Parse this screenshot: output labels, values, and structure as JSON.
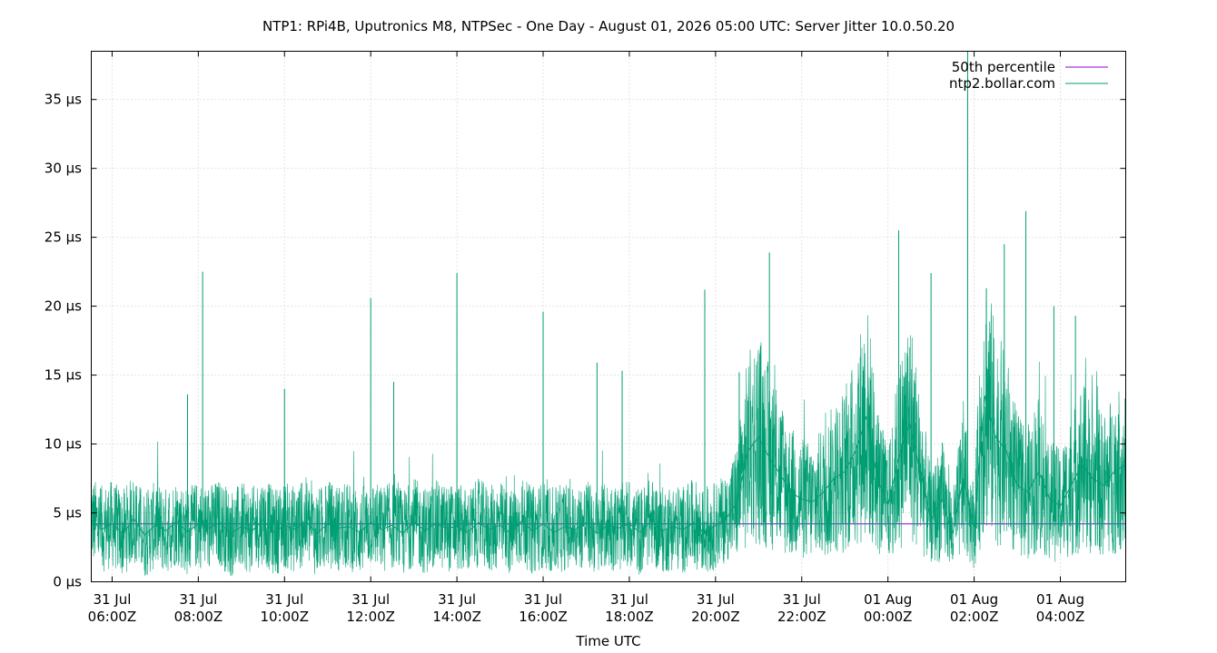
{
  "chart_data": {
    "type": "line",
    "title": "NTP1: RPi4B, Uputronics M8, NTPSec - One Day - August 01, 2026 05:00 UTC: Server Jitter 10.0.50.20",
    "xlabel": "Time UTC",
    "ylabel": "",
    "x_start": "2026-07-31T05:31Z",
    "x_end": "2026-08-01T05:31Z",
    "ylim": [
      0,
      38.5
    ],
    "grid": true,
    "legend_position": "top-right",
    "yticks": [
      {
        "value": 0,
        "label": "0 µs"
      },
      {
        "value": 5,
        "label": "5 µs"
      },
      {
        "value": 10,
        "label": "10 µs"
      },
      {
        "value": 15,
        "label": "15 µs"
      },
      {
        "value": 20,
        "label": "20 µs"
      },
      {
        "value": 25,
        "label": "25 µs"
      },
      {
        "value": 30,
        "label": "30 µs"
      },
      {
        "value": 35,
        "label": "35 µs"
      }
    ],
    "xticks": [
      {
        "time": "2026-07-31T06:00Z",
        "date": "31 Jul",
        "label": "06:00Z"
      },
      {
        "time": "2026-07-31T08:00Z",
        "date": "31 Jul",
        "label": "08:00Z"
      },
      {
        "time": "2026-07-31T10:00Z",
        "date": "31 Jul",
        "label": "10:00Z"
      },
      {
        "time": "2026-07-31T12:00Z",
        "date": "31 Jul",
        "label": "12:00Z"
      },
      {
        "time": "2026-07-31T14:00Z",
        "date": "31 Jul",
        "label": "14:00Z"
      },
      {
        "time": "2026-07-31T16:00Z",
        "date": "31 Jul",
        "label": "16:00Z"
      },
      {
        "time": "2026-07-31T18:00Z",
        "date": "31 Jul",
        "label": "18:00Z"
      },
      {
        "time": "2026-07-31T20:00Z",
        "date": "31 Jul",
        "label": "20:00Z"
      },
      {
        "time": "2026-07-31T22:00Z",
        "date": "31 Jul",
        "label": "22:00Z"
      },
      {
        "time": "2026-08-01T00:00Z",
        "date": "01 Aug",
        "label": "00:00Z"
      },
      {
        "time": "2026-08-01T02:00Z",
        "date": "01 Aug",
        "label": "02:00Z"
      },
      {
        "time": "2026-08-01T04:00Z",
        "date": "01 Aug",
        "label": "04:00Z"
      }
    ],
    "series": [
      {
        "name": "50th percentile",
        "color": "#9400d3",
        "x": [
          "2026-07-31T05:31Z",
          "2026-08-01T05:31Z"
        ],
        "values": [
          4.2,
          4.2
        ]
      },
      {
        "name": "ntp2.bollar.com",
        "color": "#009e73",
        "x": [
          "2026-07-31T05:31Z",
          "2026-07-31T05:45Z",
          "2026-07-31T06:00Z",
          "2026-07-31T06:15Z",
          "2026-07-31T06:30Z",
          "2026-07-31T06:45Z",
          "2026-07-31T07:00Z",
          "2026-07-31T07:15Z",
          "2026-07-31T07:30Z",
          "2026-07-31T07:45Z",
          "2026-07-31T08:00Z",
          "2026-07-31T08:15Z",
          "2026-07-31T08:30Z",
          "2026-07-31T08:45Z",
          "2026-07-31T09:00Z",
          "2026-07-31T09:15Z",
          "2026-07-31T09:30Z",
          "2026-07-31T09:45Z",
          "2026-07-31T10:00Z",
          "2026-07-31T10:15Z",
          "2026-07-31T10:30Z",
          "2026-07-31T10:45Z",
          "2026-07-31T11:00Z",
          "2026-07-31T11:15Z",
          "2026-07-31T11:30Z",
          "2026-07-31T11:45Z",
          "2026-07-31T12:00Z",
          "2026-07-31T12:15Z",
          "2026-07-31T12:30Z",
          "2026-07-31T12:45Z",
          "2026-07-31T13:00Z",
          "2026-07-31T13:15Z",
          "2026-07-31T13:30Z",
          "2026-07-31T13:45Z",
          "2026-07-31T14:00Z",
          "2026-07-31T14:15Z",
          "2026-07-31T14:30Z",
          "2026-07-31T14:45Z",
          "2026-07-31T15:00Z",
          "2026-07-31T15:15Z",
          "2026-07-31T15:30Z",
          "2026-07-31T15:45Z",
          "2026-07-31T16:00Z",
          "2026-07-31T16:15Z",
          "2026-07-31T16:30Z",
          "2026-07-31T16:45Z",
          "2026-07-31T17:00Z",
          "2026-07-31T17:15Z",
          "2026-07-31T17:30Z",
          "2026-07-31T17:45Z",
          "2026-07-31T18:00Z",
          "2026-07-31T18:15Z",
          "2026-07-31T18:30Z",
          "2026-07-31T18:45Z",
          "2026-07-31T19:00Z",
          "2026-07-31T19:15Z",
          "2026-07-31T19:30Z",
          "2026-07-31T19:45Z",
          "2026-07-31T20:00Z",
          "2026-07-31T20:15Z",
          "2026-07-31T20:30Z",
          "2026-07-31T20:45Z",
          "2026-07-31T21:00Z",
          "2026-07-31T21:15Z",
          "2026-07-31T21:30Z",
          "2026-07-31T21:45Z",
          "2026-07-31T22:00Z",
          "2026-07-31T22:15Z",
          "2026-07-31T22:30Z",
          "2026-07-31T22:45Z",
          "2026-07-31T23:00Z",
          "2026-07-31T23:15Z",
          "2026-07-31T23:30Z",
          "2026-07-31T23:45Z",
          "2026-08-01T00:00Z",
          "2026-08-01T00:15Z",
          "2026-08-01T00:30Z",
          "2026-08-01T00:45Z",
          "2026-08-01T01:00Z",
          "2026-08-01T01:15Z",
          "2026-08-01T01:30Z",
          "2026-08-01T01:45Z",
          "2026-08-01T02:00Z",
          "2026-08-01T02:15Z",
          "2026-08-01T02:30Z",
          "2026-08-01T02:45Z",
          "2026-08-01T03:00Z",
          "2026-08-01T03:15Z",
          "2026-08-01T03:30Z",
          "2026-08-01T03:45Z",
          "2026-08-01T04:00Z",
          "2026-08-01T04:15Z",
          "2026-08-01T04:30Z",
          "2026-08-01T04:45Z",
          "2026-08-01T05:00Z",
          "2026-08-01T05:15Z",
          "2026-08-01T05:31Z"
        ],
        "values": [
          4.5,
          3.8,
          4.2,
          3.5,
          4.6,
          3.4,
          4.1,
          3.7,
          4.4,
          3.6,
          4.2,
          3.9,
          4.3,
          3.5,
          4.0,
          3.7,
          4.5,
          3.6,
          4.1,
          3.8,
          4.4,
          3.5,
          4.2,
          3.9,
          4.0,
          3.6,
          4.3,
          3.8,
          4.1,
          3.5,
          4.4,
          3.7,
          4.2,
          3.9,
          4.0,
          3.6,
          4.3,
          3.8,
          4.1,
          3.5,
          4.4,
          3.7,
          4.2,
          3.6,
          4.0,
          3.8,
          4.3,
          3.5,
          4.1,
          3.9,
          4.2,
          3.6,
          4.4,
          3.7,
          4.0,
          3.8,
          4.3,
          3.5,
          4.1,
          4.6,
          5.8,
          9.5,
          10.5,
          9.0,
          7.8,
          6.5,
          6.0,
          5.8,
          6.5,
          7.5,
          8.0,
          9.5,
          12.0,
          7.5,
          5.5,
          9.0,
          11.5,
          8.0,
          4.5,
          6.0,
          3.5,
          7.5,
          4.0,
          13.5,
          10.5,
          9.5,
          7.0,
          6.5,
          8.0,
          6.0,
          5.5,
          7.0,
          8.5,
          7.5,
          7.0,
          8.0,
          8.5
        ]
      }
    ],
    "spikes": [
      {
        "time": "2026-07-31T07:45Z",
        "value": 13.6
      },
      {
        "time": "2026-07-31T08:06Z",
        "value": 22.5
      },
      {
        "time": "2026-07-31T10:00Z",
        "value": 14.0
      },
      {
        "time": "2026-07-31T12:00Z",
        "value": 20.6
      },
      {
        "time": "2026-07-31T12:32Z",
        "value": 14.5
      },
      {
        "time": "2026-07-31T14:00Z",
        "value": 22.4
      },
      {
        "time": "2026-07-31T16:00Z",
        "value": 19.6
      },
      {
        "time": "2026-07-31T17:15Z",
        "value": 15.9
      },
      {
        "time": "2026-07-31T17:50Z",
        "value": 15.3
      },
      {
        "time": "2026-07-31T19:45Z",
        "value": 21.2
      },
      {
        "time": "2026-07-31T20:33Z",
        "value": 15.2
      },
      {
        "time": "2026-07-31T21:15Z",
        "value": 23.9
      },
      {
        "time": "2026-08-01T00:15Z",
        "value": 25.5
      },
      {
        "time": "2026-08-01T01:00Z",
        "value": 22.4
      },
      {
        "time": "2026-08-01T01:51Z",
        "value": 38.5
      },
      {
        "time": "2026-08-01T02:17Z",
        "value": 21.3
      },
      {
        "time": "2026-08-01T02:42Z",
        "value": 24.5
      },
      {
        "time": "2026-08-01T03:12Z",
        "value": 26.9
      },
      {
        "time": "2026-08-01T03:51Z",
        "value": 20.0
      },
      {
        "time": "2026-08-01T04:21Z",
        "value": 19.3
      }
    ]
  }
}
